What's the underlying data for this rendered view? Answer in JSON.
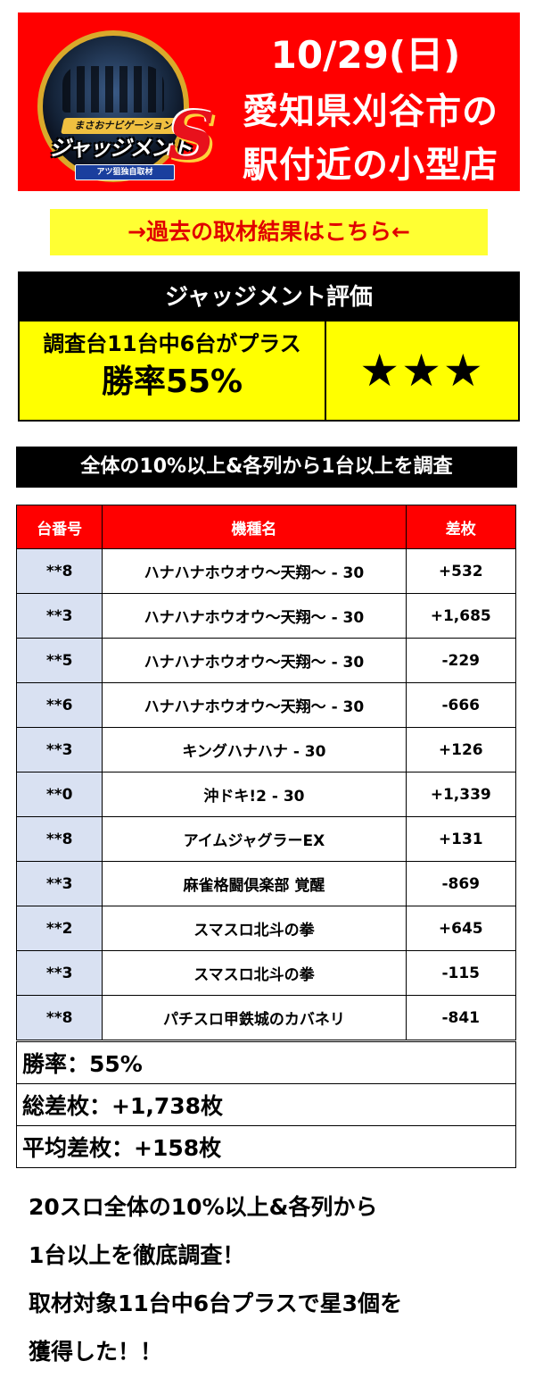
{
  "banner": {
    "logo": {
      "top_text": "まさおナビゲーション",
      "main_text": "ジャッジメント",
      "sub_text": "アツ狙独自取材",
      "s_mark": "S"
    },
    "date": "10/29(日)",
    "area_line1": "愛知県刈谷市の",
    "area_line2": "駅付近の小型店",
    "background_color": "#ff0000"
  },
  "past_link": "→過去の取材結果はこちら←",
  "evaluation": {
    "title": "ジャッジメント評価",
    "summary_line": "調査台11台中6台がプラス",
    "win_rate_line": "勝率55%",
    "stars": "★★★"
  },
  "section_title": "全体の10%以上&各列から1台以上を調査",
  "table": {
    "headers": [
      "台番号",
      "機種名",
      "差枚"
    ],
    "rows": [
      {
        "num": "**8",
        "model": "ハナハナホウオウ～天翔～ - 30",
        "diff": "+532"
      },
      {
        "num": "**3",
        "model": "ハナハナホウオウ～天翔～ - 30",
        "diff": "+1,685"
      },
      {
        "num": "**5",
        "model": "ハナハナホウオウ～天翔～ - 30",
        "diff": "-229"
      },
      {
        "num": "**6",
        "model": "ハナハナホウオウ～天翔～ - 30",
        "diff": "-666"
      },
      {
        "num": "**3",
        "model": "キングハナハナ - 30",
        "diff": "+126"
      },
      {
        "num": "**0",
        "model": "沖ドキ!2 - 30",
        "diff": "+1,339"
      },
      {
        "num": "**8",
        "model": "アイムジャグラーEX",
        "diff": "+131"
      },
      {
        "num": "**3",
        "model": "麻雀格闘倶楽部 覚醒",
        "diff": "-869"
      },
      {
        "num": "**2",
        "model": "スマスロ北斗の拳",
        "diff": "+645"
      },
      {
        "num": "**3",
        "model": "スマスロ北斗の拳",
        "diff": "-115"
      },
      {
        "num": "**8",
        "model": "パチスロ甲鉄城のカバネリ",
        "diff": "-841"
      }
    ]
  },
  "summary": {
    "win_rate": "勝率：55%",
    "total_diff": "総差枚：+1,738枚",
    "avg_diff": "平均差枚：+158枚"
  },
  "comment": {
    "line1": "20スロ全体の10%以上&各列から",
    "line2": "1台以上を徹底調査！",
    "line3": "取材対象11台中6台プラスで星3個を",
    "line4": "獲得した！！"
  },
  "colors": {
    "accent_red": "#ff0000",
    "highlight_yellow": "#ffff00",
    "number_cell_blue": "#d9e1f2"
  }
}
